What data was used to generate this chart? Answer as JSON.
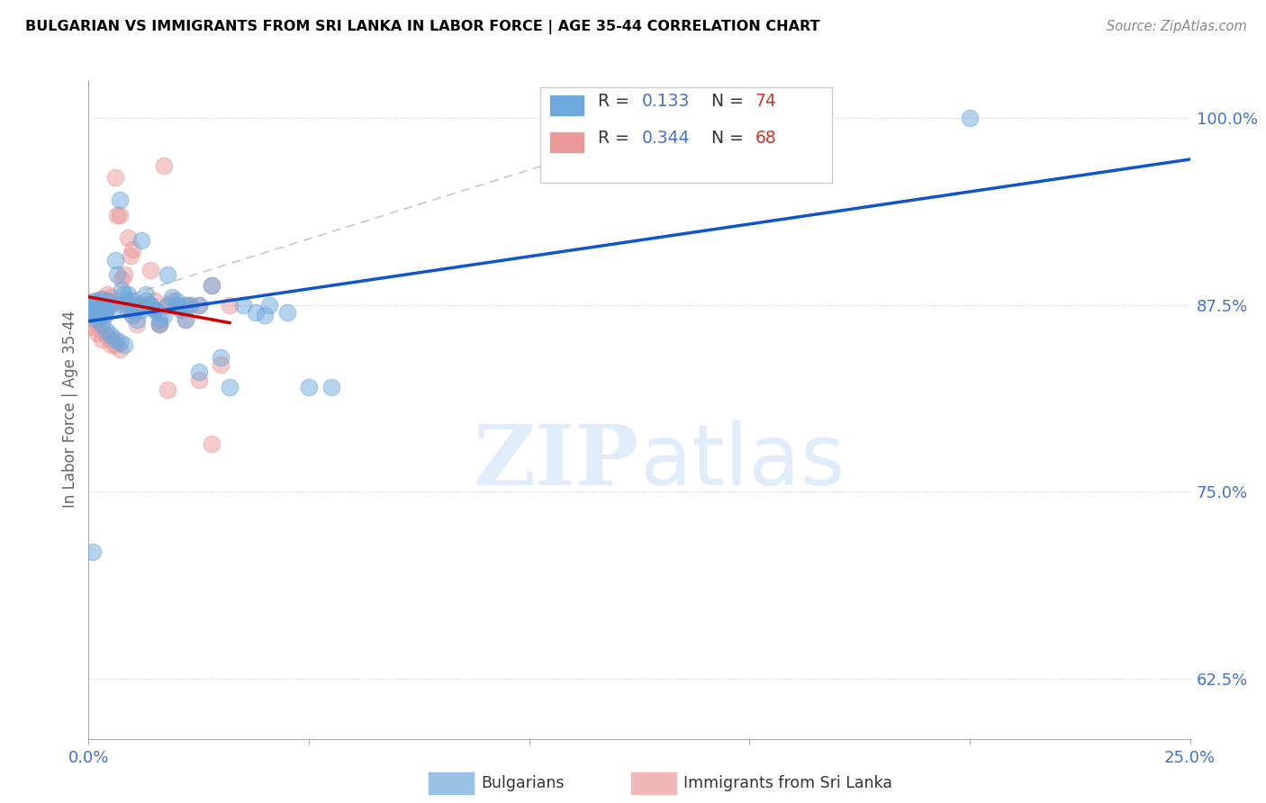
{
  "title": "BULGARIAN VS IMMIGRANTS FROM SRI LANKA IN LABOR FORCE | AGE 35-44 CORRELATION CHART",
  "source": "Source: ZipAtlas.com",
  "ylabel": "In Labor Force | Age 35-44",
  "xlim": [
    0.0,
    0.25
  ],
  "ylim": [
    0.585,
    1.025
  ],
  "blue_color": "#6fa8dc",
  "pink_color": "#ea9999",
  "trend_blue": "#1155cc",
  "trend_pink": "#cc0000",
  "diagonal_color": "#bbbbbb",
  "bg_color": "#ffffff",
  "grid_color": "#cccccc",
  "title_color": "#000000",
  "r1": "0.133",
  "n1": "74",
  "r2": "0.344",
  "n2": "68",
  "blue_x": [
    0.0008,
    0.001,
    0.0012,
    0.0015,
    0.0018,
    0.002,
    0.0022,
    0.0025,
    0.003,
    0.0032,
    0.0035,
    0.004,
    0.0042,
    0.0045,
    0.005,
    0.0055,
    0.006,
    0.0065,
    0.007,
    0.0075,
    0.008,
    0.0085,
    0.009,
    0.0095,
    0.01,
    0.011,
    0.012,
    0.013,
    0.014,
    0.015,
    0.016,
    0.017,
    0.018,
    0.019,
    0.02,
    0.021,
    0.022,
    0.023,
    0.025,
    0.028,
    0.001,
    0.0015,
    0.002,
    0.003,
    0.004,
    0.005,
    0.006,
    0.007,
    0.008,
    0.009,
    0.01,
    0.011,
    0.012,
    0.013,
    0.014,
    0.015,
    0.016,
    0.018,
    0.02,
    0.022,
    0.025,
    0.03,
    0.032,
    0.035,
    0.038,
    0.04,
    0.041,
    0.045,
    0.05,
    0.055,
    0.001,
    0.002,
    0.2,
    0.001
  ],
  "blue_y": [
    0.875,
    0.877,
    0.873,
    0.876,
    0.872,
    0.878,
    0.874,
    0.871,
    0.879,
    0.873,
    0.868,
    0.872,
    0.878,
    0.874,
    0.876,
    0.872,
    0.905,
    0.895,
    0.945,
    0.885,
    0.882,
    0.876,
    0.882,
    0.876,
    0.878,
    0.875,
    0.872,
    0.878,
    0.875,
    0.872,
    0.865,
    0.868,
    0.875,
    0.88,
    0.875,
    0.872,
    0.865,
    0.875,
    0.875,
    0.888,
    0.87,
    0.868,
    0.865,
    0.862,
    0.858,
    0.855,
    0.852,
    0.85,
    0.848,
    0.872,
    0.868,
    0.865,
    0.918,
    0.882,
    0.875,
    0.872,
    0.862,
    0.895,
    0.878,
    0.875,
    0.83,
    0.84,
    0.82,
    0.875,
    0.87,
    0.868,
    0.875,
    0.87,
    0.82,
    0.82,
    0.87,
    0.87,
    1.0,
    0.71
  ],
  "pink_x": [
    0.0008,
    0.001,
    0.0012,
    0.0015,
    0.0018,
    0.002,
    0.0022,
    0.0025,
    0.003,
    0.0032,
    0.0035,
    0.004,
    0.0042,
    0.0045,
    0.005,
    0.0055,
    0.006,
    0.0065,
    0.007,
    0.0075,
    0.008,
    0.0085,
    0.009,
    0.0095,
    0.01,
    0.011,
    0.012,
    0.013,
    0.014,
    0.015,
    0.016,
    0.017,
    0.018,
    0.019,
    0.02,
    0.021,
    0.022,
    0.023,
    0.025,
    0.028,
    0.001,
    0.0015,
    0.002,
    0.003,
    0.004,
    0.005,
    0.006,
    0.007,
    0.008,
    0.009,
    0.01,
    0.011,
    0.012,
    0.013,
    0.014,
    0.015,
    0.016,
    0.018,
    0.02,
    0.022,
    0.025,
    0.028,
    0.03,
    0.032,
    0.001,
    0.002,
    0.003,
    0.005
  ],
  "pink_y": [
    0.875,
    0.877,
    0.873,
    0.876,
    0.872,
    0.878,
    0.874,
    0.871,
    0.879,
    0.873,
    0.868,
    0.875,
    0.882,
    0.878,
    0.88,
    0.876,
    0.96,
    0.935,
    0.935,
    0.892,
    0.895,
    0.878,
    0.92,
    0.908,
    0.912,
    0.875,
    0.875,
    0.875,
    0.898,
    0.878,
    0.862,
    0.968,
    0.875,
    0.878,
    0.875,
    0.872,
    0.865,
    0.875,
    0.875,
    0.888,
    0.87,
    0.865,
    0.862,
    0.858,
    0.855,
    0.852,
    0.848,
    0.845,
    0.875,
    0.875,
    0.868,
    0.862,
    0.875,
    0.875,
    0.875,
    0.872,
    0.862,
    0.818,
    0.875,
    0.875,
    0.825,
    0.782,
    0.835,
    0.875,
    0.86,
    0.856,
    0.852,
    0.848
  ]
}
